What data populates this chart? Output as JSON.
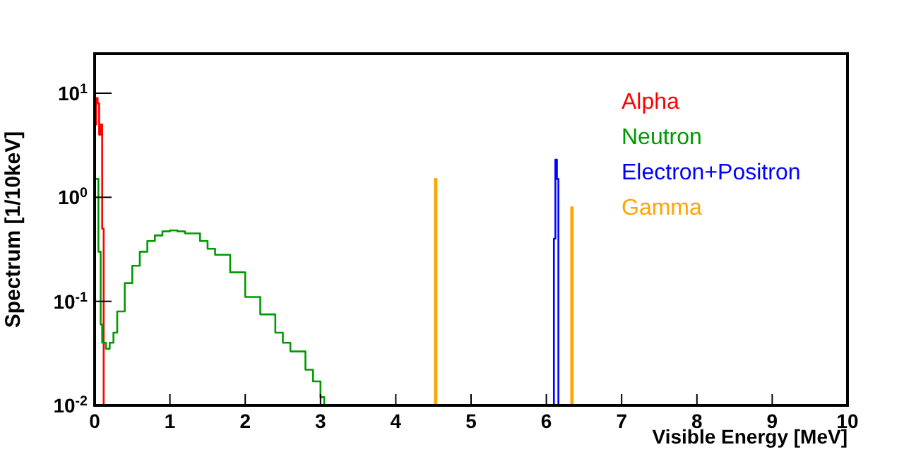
{
  "chart_data": {
    "type": "step",
    "xlabel": "Visible Energy [MeV]",
    "ylabel": "Spectrum [1/10keV]",
    "log": "y",
    "grid": false,
    "legend": "top right",
    "xlim": [
      0,
      10
    ],
    "xticks": [
      0,
      1,
      2,
      3,
      4,
      5,
      6,
      7,
      8,
      9,
      10
    ],
    "ylim": [
      0.01,
      24
    ],
    "yticks": [
      {
        "value": 0.01,
        "label": "10$^{-2}$"
      },
      {
        "value": 0.1,
        "label": "10$^{-1}$"
      },
      {
        "value": 1,
        "label": "10$^{0}$"
      },
      {
        "value": 10,
        "label": "10$^{1}$"
      }
    ],
    "series": [
      {
        "name": "Alpha",
        "color": "#ff0000",
        "x": [
          0,
          0.02,
          0.04,
          0.06,
          0.08,
          0.1,
          0.12
        ],
        "values": [
          5,
          9,
          8,
          4,
          5,
          0.5,
          0.01
        ]
      },
      {
        "name": "Neutron",
        "color": "#009900",
        "x": [
          0,
          0.05,
          0.08,
          0.1,
          0.15,
          0.2,
          0.25,
          0.3,
          0.4,
          0.5,
          0.6,
          0.7,
          0.8,
          0.9,
          1.0,
          1.1,
          1.2,
          1.4,
          1.5,
          1.6,
          1.8,
          2.0,
          2.2,
          2.4,
          2.5,
          2.6,
          2.8,
          2.9,
          3.0,
          3.05
        ],
        "values": [
          1.5,
          0.3,
          0.06,
          0.04,
          0.035,
          0.04,
          0.05,
          0.08,
          0.15,
          0.22,
          0.3,
          0.38,
          0.43,
          0.47,
          0.48,
          0.47,
          0.45,
          0.38,
          0.32,
          0.28,
          0.19,
          0.11,
          0.075,
          0.05,
          0.04,
          0.033,
          0.022,
          0.017,
          0.012,
          0.01
        ]
      },
      {
        "name": "Electron+Positron",
        "color": "#0000ff",
        "x": [
          6.08,
          6.1,
          6.12,
          6.14,
          6.16
        ],
        "values": [
          0.01,
          0.4,
          2.3,
          1.5,
          0.01
        ]
      },
      {
        "name": "Gamma",
        "color": "#ffa500",
        "x": [
          4.5,
          4.52,
          4.54,
          5,
          6.31,
          6.33,
          6.35
        ],
        "values": [
          0.01,
          1.5,
          0.01,
          null,
          0.01,
          0.8,
          0.01
        ]
      }
    ]
  }
}
